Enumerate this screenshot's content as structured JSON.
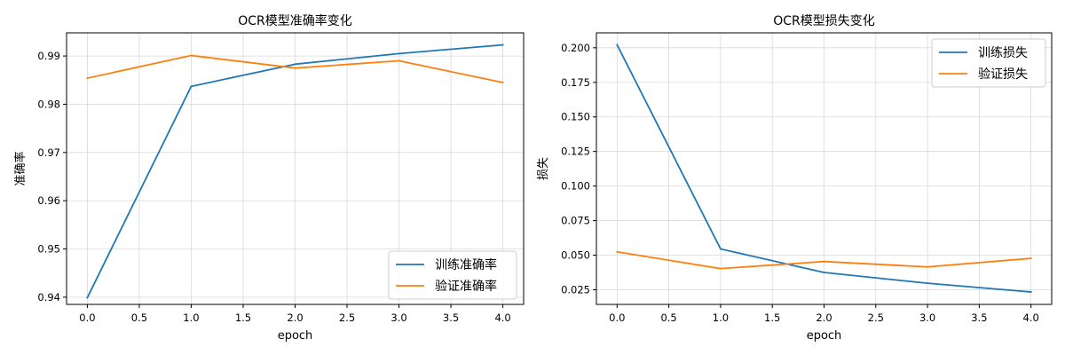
{
  "chart_data": [
    {
      "type": "line",
      "title": "OCR模型准确率变化",
      "xlabel": "epoch",
      "ylabel": "准确率",
      "x": [
        0,
        1,
        2,
        3,
        4
      ],
      "xlim": [
        -0.2,
        4.2
      ],
      "ylim": [
        0.9385,
        0.9948
      ],
      "xticks": [
        0.0,
        0.5,
        1.0,
        1.5,
        2.0,
        2.5,
        3.0,
        3.5,
        4.0
      ],
      "yticks": [
        0.94,
        0.95,
        0.96,
        0.97,
        0.98,
        0.99
      ],
      "xtick_labels": [
        "0.0",
        "0.5",
        "1.0",
        "1.5",
        "2.0",
        "2.5",
        "3.0",
        "3.5",
        "4.0"
      ],
      "ytick_labels": [
        "0.94",
        "0.95",
        "0.96",
        "0.97",
        "0.98",
        "0.99"
      ],
      "grid": true,
      "legend_position": "lower-right",
      "series": [
        {
          "name": "训练准确率",
          "color": "#1f77b4",
          "values": [
            0.9399,
            0.9837,
            0.9883,
            0.9905,
            0.9923
          ]
        },
        {
          "name": "验证准确率",
          "color": "#ff7f0e",
          "values": [
            0.9854,
            0.9901,
            0.9875,
            0.989,
            0.9845
          ]
        }
      ]
    },
    {
      "type": "line",
      "title": "OCR模型损失变化",
      "xlabel": "epoch",
      "ylabel": "损失",
      "x": [
        0,
        1,
        2,
        3,
        4
      ],
      "xlim": [
        -0.2,
        4.2
      ],
      "ylim": [
        0.0144,
        0.2108
      ],
      "xticks": [
        0.0,
        0.5,
        1.0,
        1.5,
        2.0,
        2.5,
        3.0,
        3.5,
        4.0
      ],
      "yticks": [
        0.025,
        0.05,
        0.075,
        0.1,
        0.125,
        0.15,
        0.175,
        0.2
      ],
      "xtick_labels": [
        "0.0",
        "0.5",
        "1.0",
        "1.5",
        "2.0",
        "2.5",
        "3.0",
        "3.5",
        "4.0"
      ],
      "ytick_labels": [
        "0.025",
        "0.050",
        "0.075",
        "0.100",
        "0.125",
        "0.150",
        "0.175",
        "0.200"
      ],
      "grid": true,
      "legend_position": "upper-right",
      "series": [
        {
          "name": "训练损失",
          "color": "#1f77b4",
          "values": [
            0.2021,
            0.0545,
            0.0375,
            0.0297,
            0.0234
          ]
        },
        {
          "name": "验证损失",
          "color": "#ff7f0e",
          "values": [
            0.0524,
            0.0403,
            0.0454,
            0.0415,
            0.0477
          ]
        }
      ]
    }
  ]
}
